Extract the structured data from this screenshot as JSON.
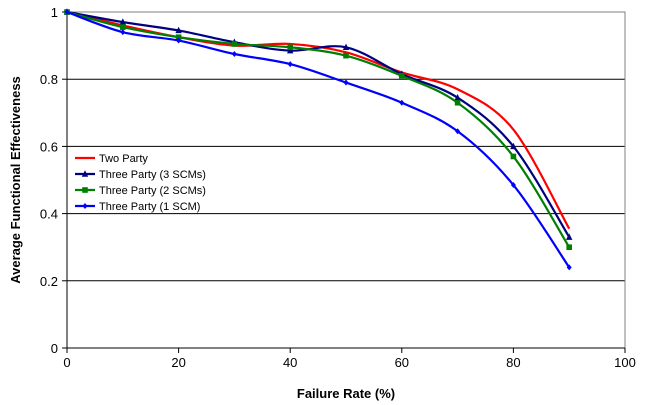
{
  "chart_data": {
    "type": "line",
    "title": "",
    "xlabel": "Failure Rate (%)",
    "ylabel": "Average Functional Effectiveness",
    "xlim": [
      0,
      100
    ],
    "ylim": [
      0,
      1
    ],
    "xticks": [
      0,
      20,
      40,
      60,
      80,
      100
    ],
    "yticks": [
      0,
      0.2,
      0.4,
      0.6,
      0.8,
      1
    ],
    "xtick_labels": [
      "0",
      "20",
      "40",
      "60",
      "80",
      "100"
    ],
    "ytick_labels": [
      "0",
      "0.2",
      "0.4",
      "0.6",
      "0.8",
      "1"
    ],
    "grid": "horizontal",
    "legend_position": "left",
    "series": [
      {
        "name": "Two Party",
        "color": "#ff0000",
        "marker": "none",
        "x": [
          0,
          10,
          20,
          30,
          40,
          50,
          60,
          70,
          80,
          90
        ],
        "y": [
          1.0,
          0.96,
          0.925,
          0.9,
          0.905,
          0.88,
          0.82,
          0.77,
          0.65,
          0.355
        ]
      },
      {
        "name": "Three Party (3 SCMs)",
        "color": "#000080",
        "marker": "triangle",
        "x": [
          0,
          10,
          20,
          30,
          40,
          50,
          60,
          70,
          80,
          90
        ],
        "y": [
          1.0,
          0.97,
          0.945,
          0.91,
          0.885,
          0.895,
          0.815,
          0.745,
          0.6,
          0.33
        ]
      },
      {
        "name": "Three Party (2 SCMs)",
        "color": "#008000",
        "marker": "square",
        "x": [
          0,
          10,
          20,
          30,
          40,
          50,
          60,
          70,
          80,
          90
        ],
        "y": [
          1.0,
          0.955,
          0.925,
          0.905,
          0.895,
          0.87,
          0.81,
          0.73,
          0.57,
          0.3
        ]
      },
      {
        "name": "Three Party (1 SCM)",
        "color": "#0000ff",
        "marker": "diamond",
        "x": [
          0,
          10,
          20,
          30,
          40,
          50,
          60,
          70,
          80,
          90
        ],
        "y": [
          1.0,
          0.94,
          0.915,
          0.875,
          0.845,
          0.79,
          0.73,
          0.645,
          0.485,
          0.24
        ]
      }
    ]
  }
}
